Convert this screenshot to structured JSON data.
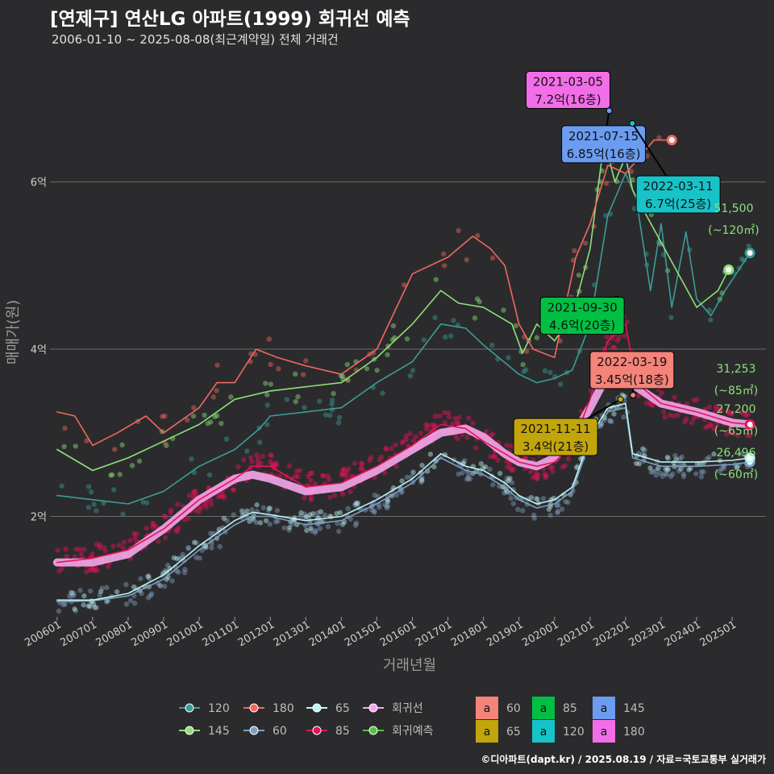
{
  "header": {
    "title": "[연제구] 연산LG 아파트(1999) 회귀선 예측",
    "subtitle": "2006-01-10 ~ 2025-08-08(최근계약일) 전체 거래건"
  },
  "footer": {
    "caption": "©디아파트(dapt.kr) / 2025.08.19 / 자료=국토교통부 실거래가"
  },
  "chart_data": {
    "type": "scatter",
    "xlabel": "거래년월",
    "ylabel": "매매가(원)",
    "xlim": [
      2005.8,
      2025.95
    ],
    "ylim": [
      0.8,
      7.5
    ],
    "y_unit": "억",
    "grid": true,
    "x_ticks": [
      "200601",
      "200701",
      "200801",
      "200901",
      "201001",
      "201101",
      "201201",
      "201301",
      "201401",
      "201501",
      "201601",
      "201701",
      "201801",
      "201901",
      "202001",
      "202101",
      "202201",
      "202301",
      "202401",
      "202501"
    ],
    "y_ticks": [
      {
        "value": 2,
        "label": "2억"
      },
      {
        "value": 4,
        "label": "4억"
      },
      {
        "value": 6,
        "label": "6억"
      }
    ],
    "series": [
      {
        "name": "120",
        "color": "#3b9d99",
        "points": [
          [
            2006.0,
            2.25
          ],
          [
            2007.0,
            2.2
          ],
          [
            2008.0,
            2.15
          ],
          [
            2009.0,
            2.3
          ],
          [
            2010.0,
            2.6
          ],
          [
            2011.0,
            2.8
          ],
          [
            2011.7,
            3.05
          ],
          [
            2012.0,
            3.2
          ],
          [
            2013.0,
            3.25
          ],
          [
            2014.0,
            3.3
          ],
          [
            2015.0,
            3.6
          ],
          [
            2016.0,
            3.85
          ],
          [
            2016.8,
            4.3
          ],
          [
            2017.5,
            4.25
          ],
          [
            2018.0,
            4.05
          ],
          [
            2019.0,
            3.7
          ],
          [
            2019.5,
            3.6
          ],
          [
            2020.0,
            3.65
          ],
          [
            2020.5,
            3.75
          ],
          [
            2021.0,
            4.3
          ],
          [
            2021.5,
            5.6
          ],
          [
            2022.0,
            6.1
          ],
          [
            2022.3,
            5.8
          ],
          [
            2022.7,
            4.7
          ],
          [
            2023.0,
            5.5
          ],
          [
            2023.3,
            4.5
          ],
          [
            2023.7,
            5.4
          ],
          [
            2024.0,
            4.6
          ],
          [
            2024.4,
            4.4
          ],
          [
            2024.8,
            4.7
          ],
          [
            2025.5,
            5.15
          ]
        ]
      },
      {
        "name": "145",
        "color": "#8ee07a",
        "points": [
          [
            2006.0,
            2.8
          ],
          [
            2007.0,
            2.55
          ],
          [
            2008.0,
            2.7
          ],
          [
            2009.0,
            2.9
          ],
          [
            2010.0,
            3.1
          ],
          [
            2011.0,
            3.4
          ],
          [
            2012.0,
            3.5
          ],
          [
            2013.0,
            3.55
          ],
          [
            2014.0,
            3.6
          ],
          [
            2015.0,
            3.9
          ],
          [
            2016.0,
            4.3
          ],
          [
            2016.8,
            4.7
          ],
          [
            2017.3,
            4.55
          ],
          [
            2018.0,
            4.5
          ],
          [
            2018.8,
            4.3
          ],
          [
            2019.1,
            3.95
          ],
          [
            2019.5,
            4.3
          ],
          [
            2020.0,
            4.1
          ],
          [
            2020.5,
            4.4
          ],
          [
            2021.0,
            5.2
          ],
          [
            2021.4,
            6.5
          ],
          [
            2021.7,
            6.0
          ],
          [
            2022.0,
            6.3
          ],
          [
            2022.2,
            5.9
          ],
          [
            2024.0,
            4.5
          ],
          [
            2024.6,
            4.7
          ],
          [
            2024.9,
            4.95
          ]
        ]
      },
      {
        "name": "180",
        "color": "#f06860",
        "points": [
          [
            2006.0,
            3.25
          ],
          [
            2006.5,
            3.2
          ],
          [
            2007.0,
            2.85
          ],
          [
            2007.7,
            3.0
          ],
          [
            2008.5,
            3.2
          ],
          [
            2009.0,
            3.0
          ],
          [
            2010.0,
            3.3
          ],
          [
            2010.5,
            3.6
          ],
          [
            2011.0,
            3.6
          ],
          [
            2011.6,
            4.0
          ],
          [
            2012.2,
            3.9
          ],
          [
            2013.0,
            3.8
          ],
          [
            2014.0,
            3.7
          ],
          [
            2015.0,
            4.0
          ],
          [
            2016.0,
            4.9
          ],
          [
            2017.0,
            5.1
          ],
          [
            2017.7,
            5.35
          ],
          [
            2018.2,
            5.2
          ],
          [
            2018.6,
            5.0
          ],
          [
            2019.0,
            4.3
          ],
          [
            2019.4,
            4.0
          ],
          [
            2020.0,
            3.9
          ],
          [
            2020.6,
            5.1
          ],
          [
            2021.0,
            5.5
          ],
          [
            2021.5,
            6.2
          ],
          [
            2022.0,
            6.1
          ],
          [
            2022.8,
            6.5
          ],
          [
            2023.3,
            6.5
          ]
        ]
      },
      {
        "name": "60",
        "color": "#7f9fc4",
        "points": [
          [
            2006.0,
            0.98
          ],
          [
            2007.0,
            0.99
          ],
          [
            2008.0,
            1.05
          ],
          [
            2009.0,
            1.25
          ],
          [
            2010.0,
            1.6
          ],
          [
            2011.0,
            1.9
          ],
          [
            2011.5,
            2.0
          ],
          [
            2012.0,
            2.0
          ],
          [
            2013.0,
            1.9
          ],
          [
            2014.0,
            1.95
          ],
          [
            2015.0,
            2.15
          ],
          [
            2016.0,
            2.4
          ],
          [
            2016.8,
            2.7
          ],
          [
            2017.5,
            2.55
          ],
          [
            2018.0,
            2.5
          ],
          [
            2018.6,
            2.35
          ],
          [
            2019.0,
            2.2
          ],
          [
            2019.5,
            2.1
          ],
          [
            2020.0,
            2.15
          ],
          [
            2020.5,
            2.3
          ],
          [
            2021.0,
            2.9
          ],
          [
            2021.5,
            3.25
          ],
          [
            2022.0,
            3.3
          ],
          [
            2022.2,
            2.7
          ],
          [
            2023.0,
            2.6
          ],
          [
            2024.0,
            2.6
          ],
          [
            2025.0,
            2.62
          ],
          [
            2025.5,
            2.65
          ]
        ]
      },
      {
        "name": "65",
        "color": "#bff5f2",
        "points": [
          [
            2006.0,
            1.0
          ],
          [
            2007.0,
            1.0
          ],
          [
            2008.0,
            1.08
          ],
          [
            2009.0,
            1.3
          ],
          [
            2010.0,
            1.65
          ],
          [
            2011.0,
            1.95
          ],
          [
            2011.5,
            2.05
          ],
          [
            2012.0,
            2.02
          ],
          [
            2013.0,
            1.95
          ],
          [
            2014.0,
            2.0
          ],
          [
            2015.0,
            2.2
          ],
          [
            2016.0,
            2.45
          ],
          [
            2016.8,
            2.75
          ],
          [
            2017.5,
            2.6
          ],
          [
            2018.0,
            2.55
          ],
          [
            2018.6,
            2.4
          ],
          [
            2019.0,
            2.25
          ],
          [
            2019.5,
            2.15
          ],
          [
            2020.0,
            2.2
          ],
          [
            2020.5,
            2.35
          ],
          [
            2021.0,
            2.95
          ],
          [
            2021.5,
            3.3
          ],
          [
            2022.0,
            3.35
          ],
          [
            2022.2,
            2.75
          ],
          [
            2023.0,
            2.65
          ],
          [
            2024.0,
            2.65
          ],
          [
            2025.0,
            2.67
          ],
          [
            2025.5,
            2.7
          ]
        ]
      },
      {
        "name": "85",
        "color": "#e8125a",
        "points": [
          [
            2006.0,
            1.45
          ],
          [
            2007.0,
            1.5
          ],
          [
            2008.0,
            1.6
          ],
          [
            2009.0,
            1.85
          ],
          [
            2010.0,
            2.2
          ],
          [
            2011.0,
            2.45
          ],
          [
            2011.5,
            2.6
          ],
          [
            2012.0,
            2.6
          ],
          [
            2013.0,
            2.35
          ],
          [
            2014.0,
            2.4
          ],
          [
            2015.0,
            2.6
          ],
          [
            2016.0,
            2.85
          ],
          [
            2016.8,
            3.1
          ],
          [
            2017.5,
            3.05
          ],
          [
            2018.0,
            2.9
          ],
          [
            2018.6,
            2.75
          ],
          [
            2019.0,
            2.65
          ],
          [
            2019.5,
            2.6
          ],
          [
            2020.0,
            2.65
          ],
          [
            2020.5,
            2.85
          ],
          [
            2021.0,
            3.4
          ],
          [
            2021.5,
            4.1
          ],
          [
            2022.0,
            4.3
          ],
          [
            2022.3,
            3.6
          ],
          [
            2023.0,
            3.35
          ],
          [
            2024.0,
            3.25
          ],
          [
            2025.0,
            3.12
          ],
          [
            2025.5,
            3.1
          ]
        ]
      },
      {
        "name": "회귀선",
        "color": "#f3a7ea",
        "points": [
          [
            2006.0,
            1.45
          ],
          [
            2007.0,
            1.45
          ],
          [
            2008.0,
            1.55
          ],
          [
            2009.0,
            1.85
          ],
          [
            2010.0,
            2.2
          ],
          [
            2011.0,
            2.45
          ],
          [
            2011.5,
            2.5
          ],
          [
            2012.0,
            2.45
          ],
          [
            2013.0,
            2.3
          ],
          [
            2014.0,
            2.35
          ],
          [
            2015.0,
            2.55
          ],
          [
            2016.0,
            2.8
          ],
          [
            2016.8,
            3.0
          ],
          [
            2017.5,
            3.05
          ],
          [
            2018.0,
            2.95
          ],
          [
            2018.6,
            2.75
          ],
          [
            2019.0,
            2.65
          ],
          [
            2019.5,
            2.6
          ],
          [
            2020.0,
            2.7
          ],
          [
            2020.5,
            2.95
          ],
          [
            2021.0,
            3.3
          ],
          [
            2021.5,
            3.7
          ],
          [
            2022.0,
            3.8
          ],
          [
            2022.3,
            3.55
          ],
          [
            2023.0,
            3.35
          ],
          [
            2024.0,
            3.25
          ],
          [
            2025.0,
            3.12
          ],
          [
            2025.5,
            3.1
          ]
        ]
      }
    ],
    "regression_forecast": {
      "name": "회귀예측",
      "color": "#58c144"
    },
    "annotations": [
      {
        "date": "2021-03-05",
        "price": "7.2억(16층)",
        "x": 2021.17,
        "y": 7.2,
        "bg": "#f26ee8",
        "label_x": 2019.2,
        "label_y": 7.1
      },
      {
        "date": "2021-07-15",
        "price": "6.85억(16층)",
        "x": 2021.54,
        "y": 6.85,
        "bg": "#6b9cf0",
        "label_x": 2020.2,
        "label_y": 6.45
      },
      {
        "date": "2022-03-11",
        "price": "6.7억(25층)",
        "x": 2022.19,
        "y": 6.7,
        "bg": "#18c3c8",
        "label_x": 2022.3,
        "label_y": 5.85
      },
      {
        "date": "2021-09-30",
        "price": "4.6억(20층)",
        "x": 2021.75,
        "y": 4.6,
        "bg": "#00c043",
        "label_x": 2019.6,
        "label_y": 4.4
      },
      {
        "date": "2022-03-19",
        "price": "3.45억(18층)",
        "x": 2022.21,
        "y": 3.45,
        "bg": "#f4837a",
        "label_x": 2021.0,
        "label_y": 3.75
      },
      {
        "date": "2021-11-11",
        "price": "3.4억(21층)",
        "x": 2021.86,
        "y": 3.4,
        "bg": "#c2a50a",
        "label_x": 2018.85,
        "label_y": 2.95
      }
    ],
    "end_labels": [
      {
        "value": "51,500",
        "area": "(~120㎡)",
        "y": 5.15,
        "color": "#8ee07a"
      },
      {
        "value": "31,253",
        "area": "(~85㎡)",
        "y": 3.12,
        "color": "#8ee07a"
      },
      {
        "value": "27,200",
        "area": "(~65㎡)",
        "y": 2.72,
        "color": "#8ee07a"
      },
      {
        "value": "26,496",
        "area": "(~60㎡)",
        "y": 2.65,
        "color": "#8ee07a"
      }
    ],
    "legend": {
      "placement": "bottom",
      "line_items": [
        {
          "label": "120",
          "color": "#3b9d99"
        },
        {
          "label": "180",
          "color": "#f06860"
        },
        {
          "label": "65",
          "color": "#bff5f2"
        },
        {
          "label": "회귀선",
          "color": "#f3a7ea"
        },
        {
          "label": "145",
          "color": "#8ee07a"
        },
        {
          "label": "60",
          "color": "#7f9fc4"
        },
        {
          "label": "85",
          "color": "#e8125a"
        },
        {
          "label": "회귀예측",
          "color": "#58c144"
        }
      ],
      "box_glyph": "a",
      "box_items": [
        {
          "label": "60",
          "color": "#f4837a"
        },
        {
          "label": "85",
          "color": "#00c043"
        },
        {
          "label": "145",
          "color": "#6b9cf0"
        },
        {
          "label": "65",
          "color": "#c2a50a"
        },
        {
          "label": "120",
          "color": "#18c3c8"
        },
        {
          "label": "180",
          "color": "#f26ee8"
        }
      ]
    }
  }
}
